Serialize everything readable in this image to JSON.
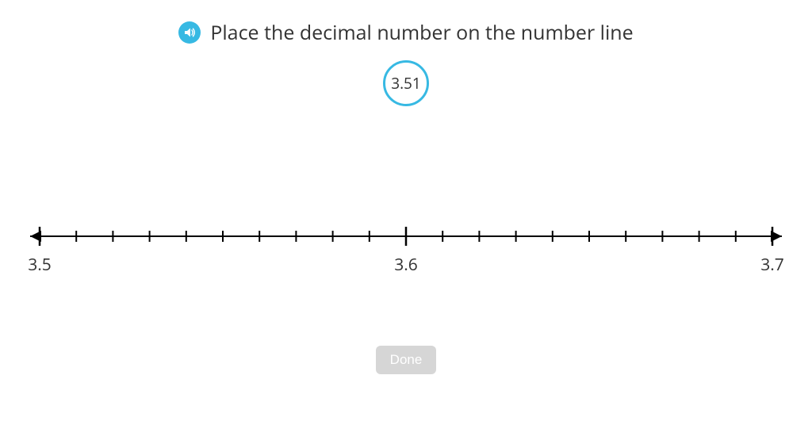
{
  "instruction": "Place the decimal number on the number line",
  "audio_icon": {
    "bg": "#37b9e3",
    "fg": "#ffffff"
  },
  "chip": {
    "value": "3.51",
    "border_color": "#37b9e3"
  },
  "number_line": {
    "min": 3.5,
    "max": 3.7,
    "major_ticks": [
      3.5,
      3.6,
      3.7
    ],
    "minor_step": 0.01,
    "axis_color": "#000000",
    "major_tick_height": 24,
    "minor_tick_height": 14,
    "stroke_width": 2,
    "label_fontsize": 21,
    "label_color": "#333333",
    "labels": [
      "3.5",
      "3.6",
      "3.7"
    ]
  },
  "done_button": {
    "label": "Done",
    "enabled": false,
    "bg_disabled": "#d6d6d6",
    "bg_enabled": "#37b9e3"
  }
}
